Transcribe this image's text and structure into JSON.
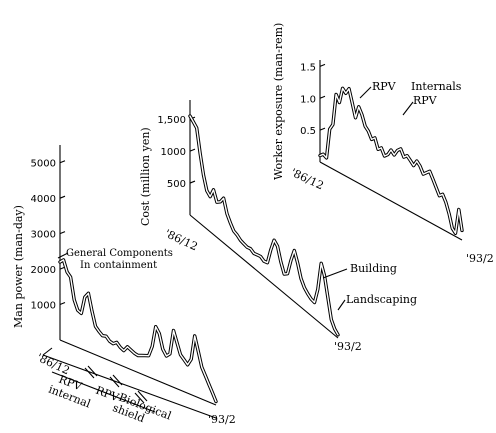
{
  "chart_data": [
    {
      "type": "line",
      "ylabel": "Man power (man-day)",
      "yticks": [
        "1000",
        "2000",
        "3000",
        "4000",
        "5000"
      ],
      "x_start_label": "'86/12",
      "x_end_label": "'93/2",
      "series": [
        {
          "values": [
            2200,
            2300,
            2000,
            1900,
            1300,
            1050,
            1000,
            1500,
            1650,
            1200,
            800,
            700,
            620,
            650,
            550,
            520,
            600,
            500,
            450,
            600,
            550,
            500,
            480,
            520,
            560,
            600,
            900,
            1500,
            1350,
            950,
            800,
            900,
            1600,
            1300,
            1000,
            900,
            800,
            1000,
            1700,
            1300,
            900,
            700,
            500,
            300,
            100
          ]
        }
      ],
      "annotations": [
        "General Components",
        "In containment"
      ],
      "phases": [
        "RPV internal",
        "RPV",
        "Biological shield"
      ]
    },
    {
      "type": "line",
      "ylabel": "Cost (million yen)",
      "yticks": [
        "500",
        "1000",
        "1,500"
      ],
      "x_start_label": "'86/12",
      "x_end_label": "'93/2",
      "series": [
        {
          "values": [
            1550,
            1500,
            1450,
            1100,
            800,
            600,
            550,
            700,
            550,
            600,
            700,
            500,
            400,
            320,
            300,
            260,
            250,
            240,
            260,
            230,
            250,
            270,
            240,
            260,
            500,
            700,
            650,
            450,
            300,
            350,
            600,
            800,
            650,
            450,
            350,
            300,
            260,
            250,
            500,
            950,
            800,
            500,
            200,
            100,
            50
          ]
        }
      ],
      "annotations": [
        "Building",
        "Landscaping"
      ]
    },
    {
      "type": "line",
      "ylabel": "Worker exposure (man-rem)",
      "yticks": [
        "0.5",
        "1.0",
        "1.5"
      ],
      "x_start_label": "'86/12",
      "x_end_label": "'93/2",
      "series": [
        {
          "values": [
            0.1,
            0.15,
            0.12,
            0.6,
            0.7,
            1.2,
            1.1,
            1.35,
            1.3,
            1.4,
            1.2,
            1.0,
            1.2,
            1.1,
            0.95,
            0.9,
            0.8,
            0.85,
            0.7,
            0.75,
            0.65,
            0.7,
            0.8,
            0.75,
            0.85,
            0.9,
            0.8,
            0.85,
            0.8,
            0.75,
            0.85,
            0.8,
            0.7,
            0.75,
            0.8,
            0.7,
            0.6,
            0.5,
            0.55,
            0.45,
            0.3,
            0.1,
            0.05,
            0.45,
            0.15
          ]
        }
      ],
      "annotations": [
        "RPV",
        "Internals",
        "RPV"
      ]
    }
  ]
}
